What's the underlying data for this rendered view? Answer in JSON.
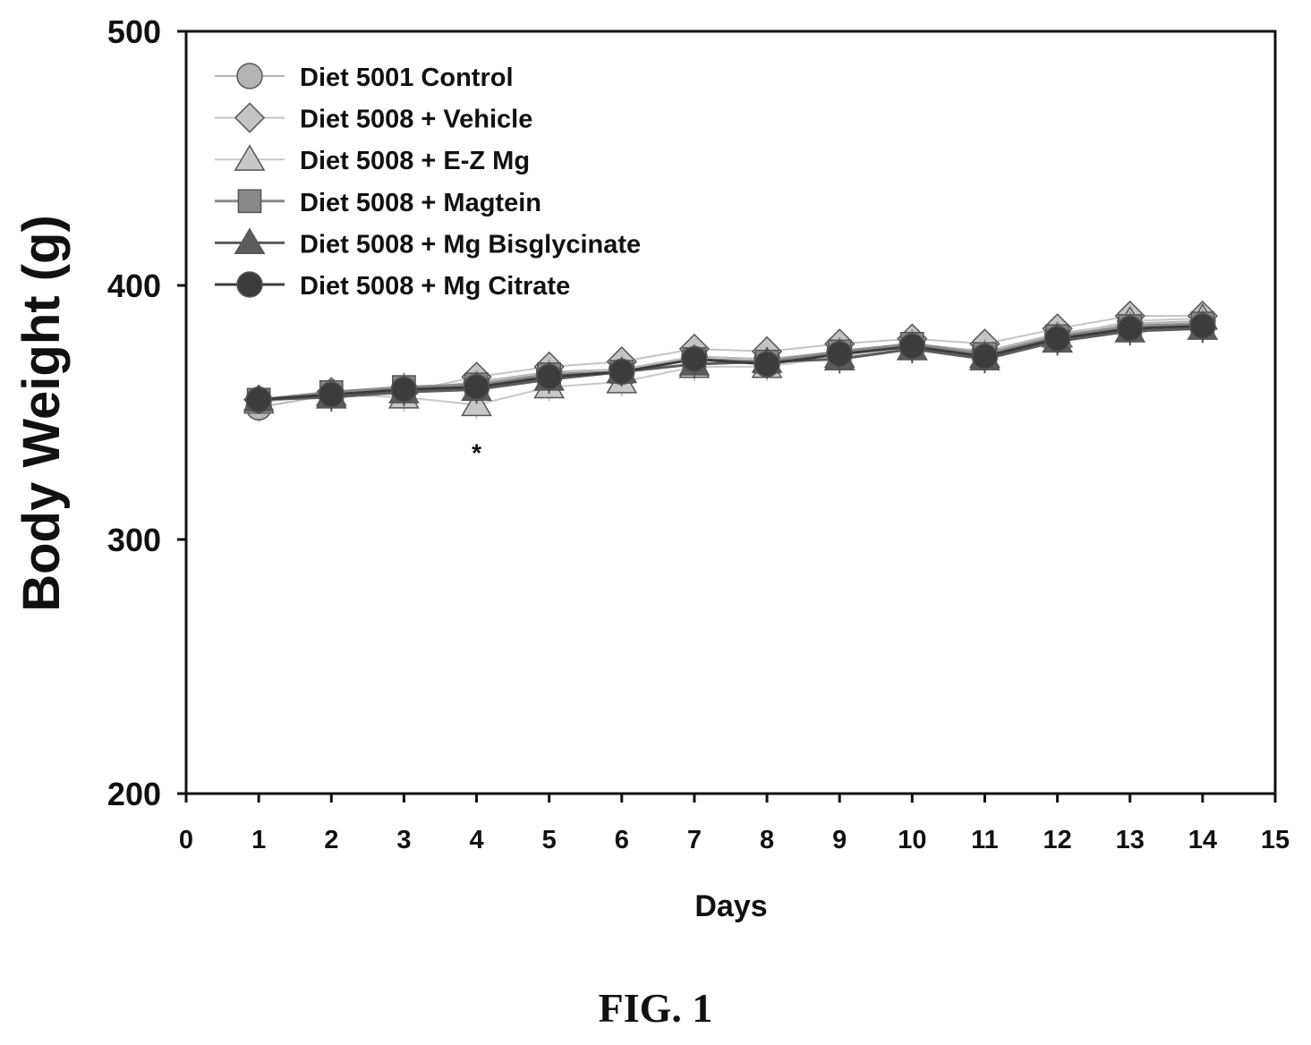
{
  "figure_caption": "FIG. 1",
  "chart_data": {
    "type": "line",
    "title": "",
    "xlabel": "Days",
    "ylabel": "Body Weight (g)",
    "xlim": [
      0,
      15
    ],
    "ylim": [
      200,
      500
    ],
    "x_ticks": [
      0,
      1,
      2,
      3,
      4,
      5,
      6,
      7,
      8,
      9,
      10,
      11,
      12,
      13,
      14,
      15
    ],
    "y_ticks": [
      200,
      300,
      400,
      500
    ],
    "grid": false,
    "legend_position": "top-left",
    "x": [
      1,
      2,
      3,
      4,
      5,
      6,
      7,
      8,
      9,
      10,
      11,
      12,
      13,
      14
    ],
    "series": [
      {
        "name": "Diet 5001 Control",
        "marker": "circle",
        "color": "#b4b4b4",
        "values": [
          352,
          357,
          359,
          362,
          366,
          367,
          372,
          371,
          374,
          377,
          374,
          381,
          385,
          386
        ]
      },
      {
        "name": "Diet 5008 + Vehicle",
        "marker": "diamond",
        "color": "#c4c4c4",
        "values": [
          355,
          358,
          358,
          364,
          368,
          370,
          375,
          374,
          377,
          379,
          377,
          383,
          388,
          388
        ]
      },
      {
        "name": "Diet 5008 + E-Z Mg",
        "marker": "triangle",
        "color": "#c8c8c8",
        "values": [
          354,
          357,
          356,
          353,
          360,
          362,
          368,
          368,
          372,
          375,
          372,
          380,
          386,
          387
        ]
      },
      {
        "name": "Diet 5008 + Magtein",
        "marker": "square",
        "color": "#8a8a8a",
        "values": [
          355,
          358,
          360,
          361,
          365,
          366,
          371,
          370,
          374,
          377,
          373,
          380,
          384,
          385
        ]
      },
      {
        "name": "Diet 5008 + Mg Bisglycinate",
        "marker": "triangle",
        "color": "#5c5c5c",
        "values": [
          355,
          356,
          358,
          359,
          363,
          366,
          369,
          370,
          371,
          375,
          371,
          378,
          382,
          383
        ]
      },
      {
        "name": "Diet 5008 + Mg Citrate",
        "marker": "circle",
        "color": "#3c3c3c",
        "values": [
          355,
          357,
          359,
          360,
          364,
          366,
          371,
          369,
          373,
          376,
          372,
          379,
          383,
          384
        ]
      }
    ],
    "annotations": [
      {
        "text": "*",
        "x": 4,
        "y": 335
      }
    ]
  }
}
